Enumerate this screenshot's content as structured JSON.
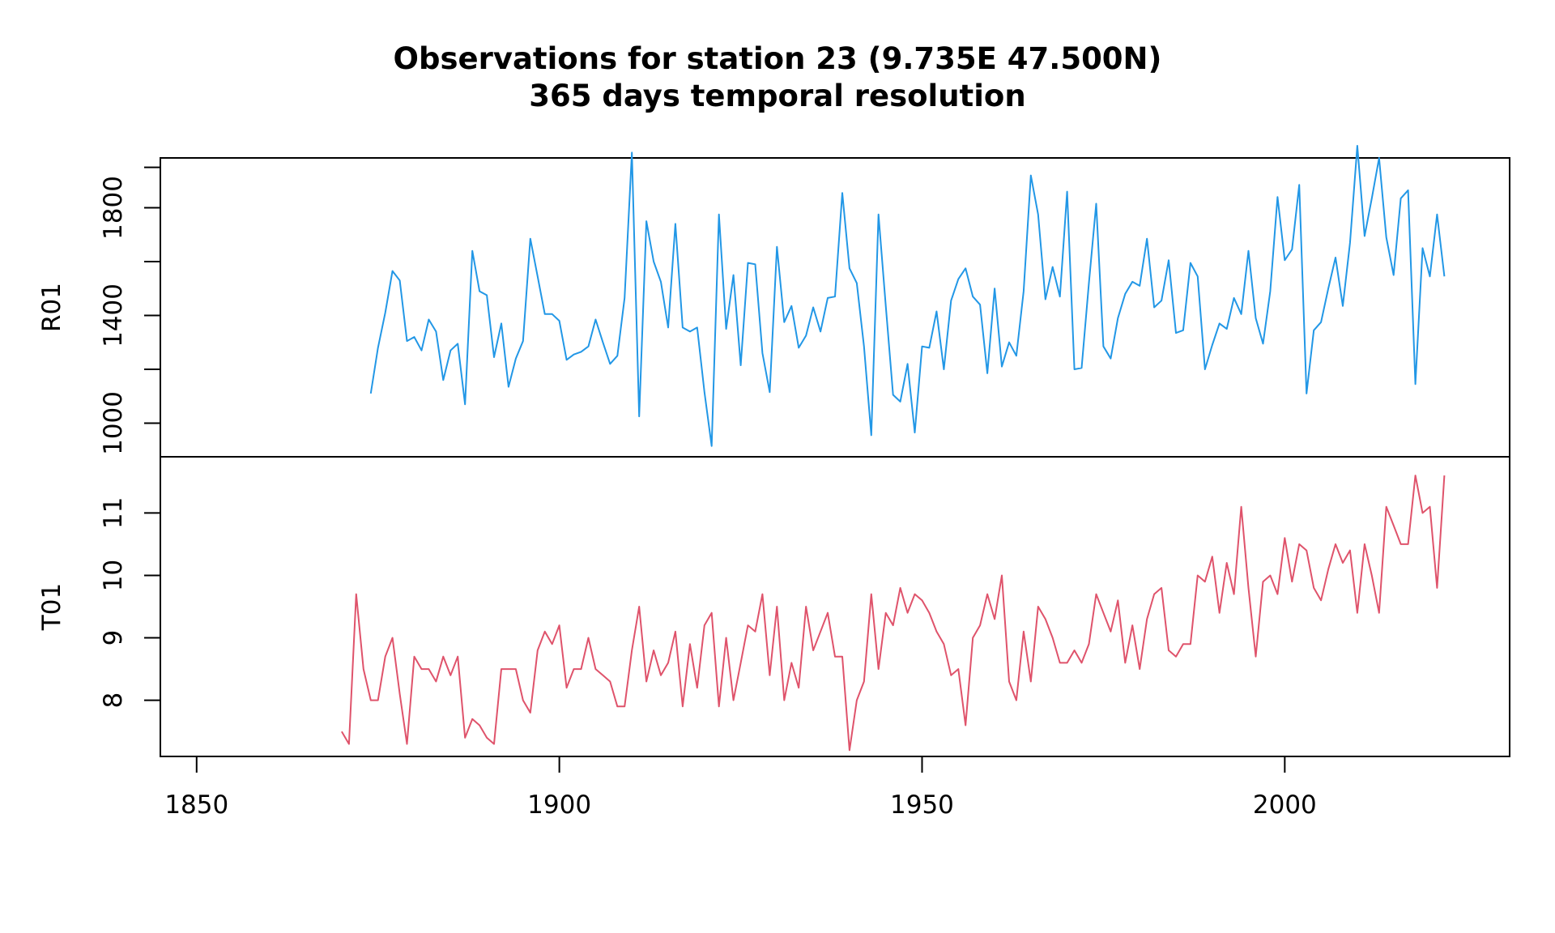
{
  "chart_data": {
    "type": "line",
    "title": "Observations for station 23 (9.735E 47.500N)",
    "subtitle": "365 days temporal resolution",
    "xlim": [
      1845,
      2031
    ],
    "xticks": [
      "1850",
      "1900",
      "1950",
      "2000"
    ],
    "xtick_values": [
      1850,
      1900,
      1950,
      2000
    ],
    "panels": [
      {
        "name": "R01",
        "color": "#2297E6",
        "ylim": [
          875,
          1985
        ],
        "yticks": [
          "1000",
          "1400",
          "1800"
        ],
        "ytick_values": [
          1000,
          1400,
          1800
        ],
        "minor_ytick_values": [
          1200,
          1600,
          1950
        ],
        "x": [
          1874,
          1875,
          1876,
          1877,
          1878,
          1879,
          1880,
          1881,
          1882,
          1883,
          1884,
          1885,
          1886,
          1887,
          1888,
          1889,
          1890,
          1891,
          1892,
          1893,
          1894,
          1895,
          1896,
          1897,
          1898,
          1899,
          1900,
          1901,
          1902,
          1903,
          1904,
          1905,
          1906,
          1907,
          1908,
          1909,
          1910,
          1911,
          1912,
          1913,
          1914,
          1915,
          1916,
          1917,
          1918,
          1919,
          1920,
          1921,
          1922,
          1923,
          1924,
          1925,
          1926,
          1927,
          1928,
          1929,
          1930,
          1931,
          1932,
          1933,
          1934,
          1935,
          1936,
          1937,
          1938,
          1939,
          1940,
          1941,
          1942,
          1943,
          1944,
          1945,
          1946,
          1947,
          1948,
          1949,
          1950,
          1951,
          1952,
          1953,
          1954,
          1955,
          1956,
          1957,
          1958,
          1959,
          1960,
          1961,
          1962,
          1963,
          1964,
          1965,
          1966,
          1967,
          1968,
          1969,
          1970,
          1971,
          1972,
          1973,
          1974,
          1975,
          1976,
          1977,
          1978,
          1979,
          1980,
          1981,
          1982,
          1983,
          1984,
          1985,
          1986,
          1987,
          1988,
          1989,
          1990,
          1991,
          1992,
          1993,
          1994,
          1995,
          1996,
          1997,
          1998,
          1999,
          2000,
          2001,
          2002,
          2003,
          2004,
          2005,
          2006,
          2007,
          2008,
          2009,
          2010,
          2011,
          2012,
          2013,
          2014,
          2015,
          2016,
          2017,
          2018,
          2019,
          2020,
          2021,
          2022
        ],
        "values": [
          1110,
          1280,
          1410,
          1565,
          1530,
          1305,
          1320,
          1270,
          1385,
          1340,
          1160,
          1270,
          1295,
          1070,
          1640,
          1490,
          1475,
          1245,
          1370,
          1135,
          1240,
          1305,
          1685,
          1545,
          1405,
          1405,
          1380,
          1235,
          1255,
          1265,
          1285,
          1385,
          1300,
          1220,
          1250,
          1465,
          2005,
          1025,
          1750,
          1600,
          1525,
          1355,
          1740,
          1355,
          1340,
          1355,
          1115,
          915,
          1775,
          1350,
          1550,
          1215,
          1595,
          1590,
          1260,
          1115,
          1655,
          1375,
          1435,
          1280,
          1325,
          1430,
          1340,
          1465,
          1470,
          1855,
          1575,
          1520,
          1285,
          955,
          1775,
          1435,
          1105,
          1080,
          1220,
          965,
          1285,
          1280,
          1415,
          1200,
          1455,
          1535,
          1575,
          1470,
          1440,
          1185,
          1500,
          1210,
          1300,
          1250,
          1490,
          1920,
          1775,
          1460,
          1580,
          1470,
          1860,
          1200,
          1205,
          1520,
          1815,
          1285,
          1240,
          1390,
          1480,
          1525,
          1510,
          1685,
          1430,
          1455,
          1605,
          1335,
          1345,
          1595,
          1545,
          1200,
          1290,
          1370,
          1350,
          1465,
          1405,
          1640,
          1390,
          1295,
          1490,
          1840,
          1605,
          1645,
          1885,
          1110,
          1345,
          1375,
          1500,
          1615,
          1435,
          1670,
          2030,
          1695,
          1835,
          1985,
          1690,
          1550,
          1835,
          1865,
          1145,
          1650,
          1545,
          1775,
          1545
        ]
      },
      {
        "name": "T01",
        "color": "#DF536B",
        "ylim": [
          7.1,
          11.9
        ],
        "yticks": [
          "8",
          "9",
          "10",
          "11"
        ],
        "ytick_values": [
          8,
          9,
          10,
          11
        ],
        "minor_ytick_values": [],
        "x": [
          1870,
          1871,
          1872,
          1873,
          1874,
          1875,
          1876,
          1877,
          1878,
          1879,
          1880,
          1881,
          1882,
          1883,
          1884,
          1885,
          1886,
          1887,
          1888,
          1889,
          1890,
          1891,
          1892,
          1893,
          1894,
          1895,
          1896,
          1897,
          1898,
          1899,
          1900,
          1901,
          1902,
          1903,
          1904,
          1905,
          1906,
          1907,
          1908,
          1909,
          1910,
          1911,
          1912,
          1913,
          1914,
          1915,
          1916,
          1917,
          1918,
          1919,
          1920,
          1921,
          1922,
          1923,
          1924,
          1925,
          1926,
          1927,
          1928,
          1929,
          1930,
          1931,
          1932,
          1933,
          1934,
          1935,
          1936,
          1937,
          1938,
          1939,
          1940,
          1941,
          1942,
          1943,
          1944,
          1945,
          1946,
          1947,
          1948,
          1949,
          1950,
          1951,
          1952,
          1953,
          1954,
          1955,
          1956,
          1957,
          1958,
          1959,
          1960,
          1961,
          1962,
          1963,
          1964,
          1965,
          1966,
          1967,
          1968,
          1969,
          1970,
          1971,
          1972,
          1973,
          1974,
          1975,
          1976,
          1977,
          1978,
          1979,
          1980,
          1981,
          1982,
          1983,
          1984,
          1985,
          1986,
          1987,
          1988,
          1989,
          1990,
          1991,
          1992,
          1993,
          1994,
          1995,
          1996,
          1997,
          1998,
          1999,
          2000,
          2001,
          2002,
          2003,
          2004,
          2005,
          2006,
          2007,
          2008,
          2009,
          2010,
          2011,
          2012,
          2013,
          2014,
          2015,
          2016,
          2017,
          2018,
          2019,
          2020,
          2021,
          2022
        ],
        "values": [
          7.5,
          7.3,
          9.7,
          8.5,
          8.0,
          8.0,
          8.7,
          9.0,
          8.1,
          7.3,
          8.7,
          8.5,
          8.5,
          8.3,
          8.7,
          8.4,
          8.7,
          7.4,
          7.7,
          7.6,
          7.4,
          7.3,
          8.5,
          8.5,
          8.5,
          8.0,
          7.8,
          8.8,
          9.1,
          8.9,
          9.2,
          8.2,
          8.5,
          8.5,
          9.0,
          8.5,
          8.4,
          8.3,
          7.9,
          7.9,
          8.8,
          9.5,
          8.3,
          8.8,
          8.4,
          8.6,
          9.1,
          7.9,
          8.9,
          8.2,
          9.2,
          9.4,
          7.9,
          9.0,
          8.0,
          8.6,
          9.2,
          9.1,
          9.7,
          8.4,
          9.5,
          8.0,
          8.6,
          8.2,
          9.5,
          8.8,
          9.1,
          9.4,
          8.7,
          8.7,
          7.2,
          8.0,
          8.3,
          9.7,
          8.5,
          9.4,
          9.2,
          9.8,
          9.4,
          9.7,
          9.6,
          9.4,
          9.1,
          8.9,
          8.4,
          8.5,
          7.6,
          9.0,
          9.2,
          9.7,
          9.3,
          10.0,
          8.3,
          8.0,
          9.1,
          8.3,
          9.5,
          9.3,
          9.0,
          8.6,
          8.6,
          8.8,
          8.6,
          8.9,
          9.7,
          9.4,
          9.1,
          9.6,
          8.6,
          9.2,
          8.5,
          9.3,
          9.7,
          9.8,
          8.8,
          8.7,
          8.9,
          8.9,
          10.0,
          9.9,
          10.3,
          9.4,
          10.2,
          9.7,
          11.1,
          9.8,
          8.7,
          9.9,
          10.0,
          9.7,
          10.6,
          9.9,
          10.5,
          10.4,
          9.8,
          9.6,
          10.1,
          10.5,
          10.2,
          10.4,
          9.4,
          10.5,
          10.0,
          9.4,
          11.1,
          10.8,
          10.5,
          10.5,
          11.6,
          11.0,
          11.1,
          9.8,
          11.6
        ]
      }
    ]
  }
}
